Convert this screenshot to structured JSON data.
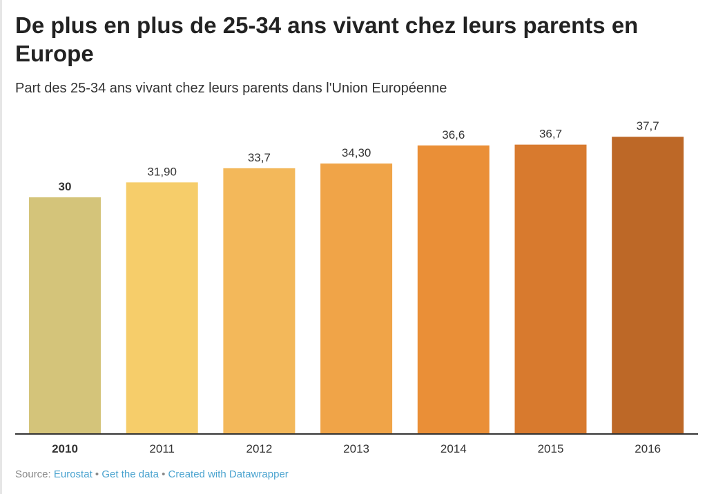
{
  "chart_data": {
    "type": "bar",
    "title": "De plus en plus de 25-34 ans vivant chez leurs parents en Europe",
    "subtitle": "Part des 25-34 ans vivant chez leurs parents dans l'Union Européenne",
    "categories": [
      "2010",
      "2011",
      "2012",
      "2013",
      "2014",
      "2015",
      "2016"
    ],
    "values": [
      30,
      31.9,
      33.7,
      34.3,
      36.6,
      36.7,
      37.7
    ],
    "value_labels": [
      "30",
      "31,90",
      "33,7",
      "34,30",
      "36,6",
      "36,7",
      "37,7"
    ],
    "colors": [
      "#d4c47a",
      "#f6cd6a",
      "#f3b85a",
      "#f0a448",
      "#ea8f37",
      "#d87a2e",
      "#bd6827"
    ],
    "highlighted": "2010",
    "xlabel": "",
    "ylabel": "",
    "ylim": [
      0,
      55
    ],
    "grid": false
  },
  "footer": {
    "source_label": "Source:",
    "source": "Eurostat",
    "sep": "•",
    "get_data": "Get the data",
    "created": "Created with Datawrapper"
  }
}
